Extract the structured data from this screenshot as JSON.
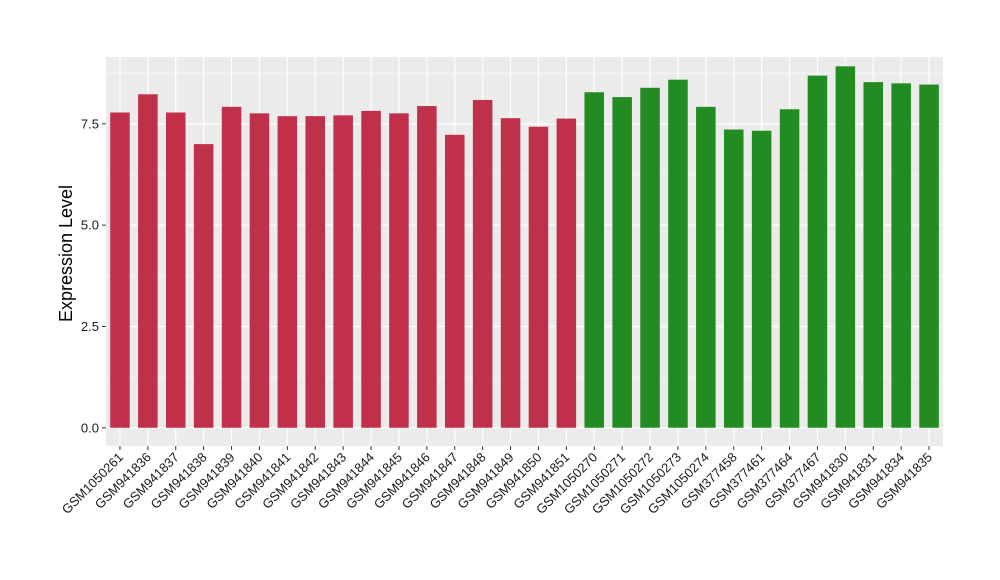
{
  "chart_data": {
    "type": "bar",
    "title": "",
    "xlabel": "",
    "ylabel": "Expression Level",
    "ylim": [
      -0.45,
      9.15
    ],
    "yticks": [
      0.0,
      2.5,
      5.0,
      7.5
    ],
    "ytick_labels": [
      "0.0",
      "2.5",
      "5.0",
      "7.5"
    ],
    "grid": true,
    "legend": "none",
    "panel_background": "#ebebeb",
    "gridline_color": "#ffffff",
    "categories": [
      "GSM1050261",
      "GSM941836",
      "GSM941837",
      "GSM941838",
      "GSM941839",
      "GSM941840",
      "GSM941841",
      "GSM941842",
      "GSM941843",
      "GSM941844",
      "GSM941845",
      "GSM941846",
      "GSM941847",
      "GSM941848",
      "GSM941849",
      "GSM941850",
      "GSM941851",
      "GSM1050270",
      "GSM1050271",
      "GSM1050272",
      "GSM1050273",
      "GSM1050274",
      "GSM377458",
      "GSM377461",
      "GSM377464",
      "GSM377467",
      "GSM941830",
      "GSM941831",
      "GSM941834",
      "GSM941835"
    ],
    "values": [
      7.78,
      8.23,
      7.78,
      7.0,
      7.92,
      7.76,
      7.69,
      7.69,
      7.71,
      7.82,
      7.76,
      7.94,
      7.23,
      8.09,
      7.64,
      7.43,
      7.63,
      8.28,
      8.16,
      8.39,
      8.59,
      7.92,
      7.36,
      7.33,
      7.86,
      8.69,
      8.92,
      8.53,
      8.5,
      8.47
    ],
    "groups": [
      "A",
      "A",
      "A",
      "A",
      "A",
      "A",
      "A",
      "A",
      "A",
      "A",
      "A",
      "A",
      "A",
      "A",
      "A",
      "A",
      "A",
      "B",
      "B",
      "B",
      "B",
      "B",
      "B",
      "B",
      "B",
      "B",
      "B",
      "B",
      "B",
      "B"
    ],
    "group_colors": {
      "A": "#c0304a",
      "B": "#228b22"
    }
  }
}
